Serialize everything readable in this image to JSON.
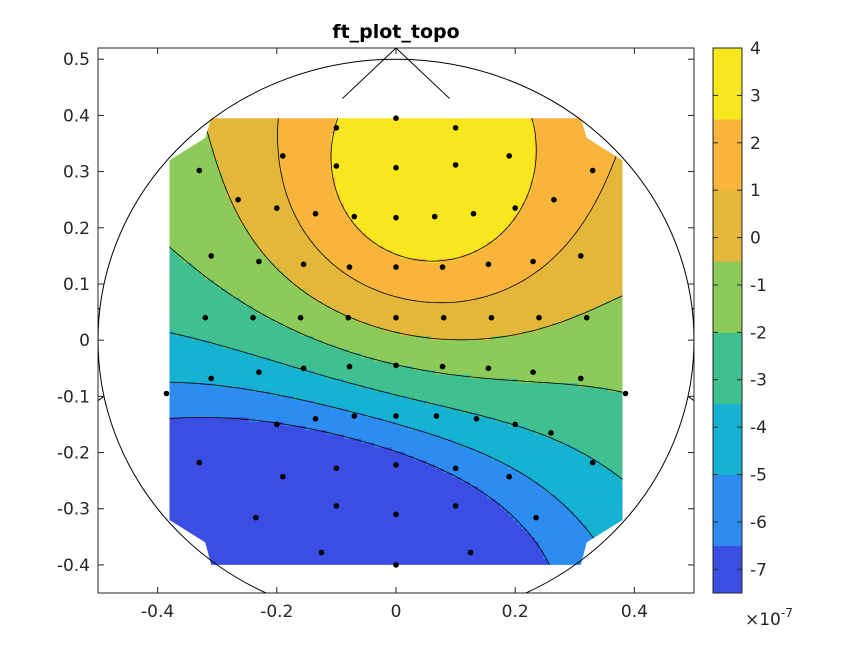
{
  "chart_data": {
    "type": "heatmap",
    "title": "ft_plot_topo",
    "xlabel": "",
    "ylabel": "",
    "xlim": [
      -0.5,
      0.5
    ],
    "ylim": [
      -0.45,
      0.52
    ],
    "x_ticks": [
      -0.4,
      -0.2,
      0,
      0.2,
      0.4
    ],
    "y_ticks": [
      -0.4,
      -0.3,
      -0.2,
      -0.1,
      0,
      0.1,
      0.2,
      0.3,
      0.4,
      0.5
    ],
    "x_tick_labels": [
      "-0.4",
      "-0.2",
      "0",
      "0.2",
      "0.4"
    ],
    "y_tick_labels": [
      "-0.4",
      "-0.3",
      "-0.2",
      "-0.1",
      "0",
      "0.1",
      "0.2",
      "0.3",
      "0.4",
      "0.5"
    ],
    "colorbar": {
      "range": [
        -7.5,
        4
      ],
      "ticks": [
        4,
        3,
        2,
        1,
        0,
        -1,
        -2,
        -3,
        -4,
        -5,
        -6,
        -7
      ],
      "tick_labels": [
        "4",
        "3",
        "2",
        "1",
        "0",
        "-1",
        "-2",
        "-3",
        "-4",
        "-5",
        "-6",
        "-7"
      ],
      "multiplier_base": "×10",
      "multiplier_exp": "-7",
      "colormap": "parula",
      "colors": [
        "#352a87",
        "#3a4ee4",
        "#2d8cf0",
        "#15b2d1",
        "#40c08f",
        "#8ccb5a",
        "#e3b73a",
        "#f9b43c",
        "#f8e61f"
      ]
    },
    "contour_levels": [
      -6.5,
      -5,
      -3.5,
      -2,
      -0.5,
      1,
      2.5
    ],
    "electrodes": [
      [
        0,
        0.395
      ],
      [
        -0.1,
        0.378
      ],
      [
        0.1,
        0.378
      ],
      [
        -0.19,
        0.328
      ],
      [
        -0.1,
        0.31
      ],
      [
        0,
        0.307
      ],
      [
        0.1,
        0.312
      ],
      [
        0.19,
        0.328
      ],
      [
        -0.33,
        0.302
      ],
      [
        0.33,
        0.302
      ],
      [
        -0.265,
        0.25
      ],
      [
        -0.2,
        0.235
      ],
      [
        -0.135,
        0.225
      ],
      [
        -0.07,
        0.22
      ],
      [
        0,
        0.218
      ],
      [
        0.065,
        0.22
      ],
      [
        0.13,
        0.225
      ],
      [
        0.2,
        0.235
      ],
      [
        0.265,
        0.25
      ],
      [
        -0.31,
        0.15
      ],
      [
        -0.23,
        0.14
      ],
      [
        -0.155,
        0.135
      ],
      [
        -0.078,
        0.13
      ],
      [
        0,
        0.13
      ],
      [
        0.078,
        0.13
      ],
      [
        0.155,
        0.135
      ],
      [
        0.23,
        0.14
      ],
      [
        0.31,
        0.15
      ],
      [
        -0.32,
        0.04
      ],
      [
        -0.24,
        0.04
      ],
      [
        -0.16,
        0.04
      ],
      [
        -0.08,
        0.04
      ],
      [
        0,
        0.04
      ],
      [
        0.08,
        0.04
      ],
      [
        0.16,
        0.04
      ],
      [
        0.24,
        0.04
      ],
      [
        0.32,
        0.04
      ],
      [
        -0.385,
        -0.095
      ],
      [
        -0.31,
        -0.068
      ],
      [
        -0.23,
        -0.057
      ],
      [
        -0.155,
        -0.05
      ],
      [
        -0.078,
        -0.047
      ],
      [
        0,
        -0.045
      ],
      [
        0.078,
        -0.047
      ],
      [
        0.155,
        -0.05
      ],
      [
        0.23,
        -0.057
      ],
      [
        0.31,
        -0.068
      ],
      [
        0.385,
        -0.095
      ],
      [
        -0.2,
        -0.15
      ],
      [
        -0.135,
        -0.14
      ],
      [
        -0.07,
        -0.135
      ],
      [
        0,
        -0.135
      ],
      [
        0.068,
        -0.135
      ],
      [
        0.135,
        -0.14
      ],
      [
        0.2,
        -0.15
      ],
      [
        0.26,
        -0.165
      ],
      [
        -0.33,
        -0.218
      ],
      [
        -0.19,
        -0.243
      ],
      [
        -0.1,
        -0.228
      ],
      [
        0,
        -0.222
      ],
      [
        0.1,
        -0.228
      ],
      [
        0.19,
        -0.243
      ],
      [
        0.33,
        -0.218
      ],
      [
        -0.235,
        -0.316
      ],
      [
        -0.1,
        -0.295
      ],
      [
        0,
        -0.31
      ],
      [
        0.1,
        -0.295
      ],
      [
        0.235,
        -0.316
      ],
      [
        -0.125,
        -0.378
      ],
      [
        0,
        -0.4
      ],
      [
        0.125,
        -0.378
      ]
    ]
  }
}
